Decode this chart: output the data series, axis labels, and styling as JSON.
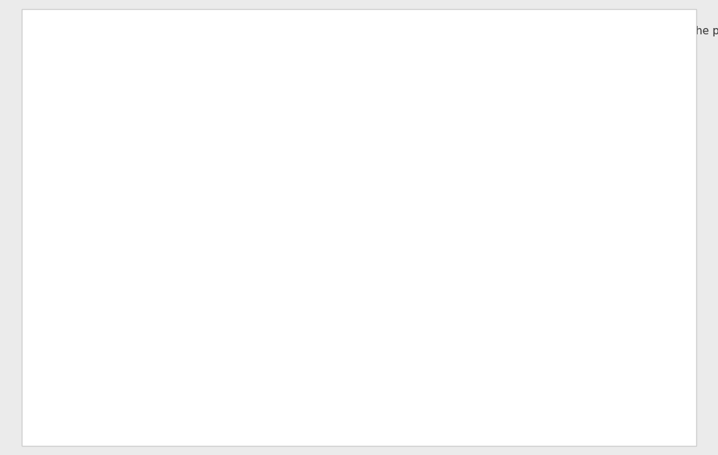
{
  "bg_color": "#ebebeb",
  "content_bg": "#ffffff",
  "border_color": "#cccccc",
  "text_color": "#333333",
  "chem_color": "#555555",
  "blue_color": "#4a7cb5",
  "font_size_text": 11,
  "font_size_chem": 11
}
